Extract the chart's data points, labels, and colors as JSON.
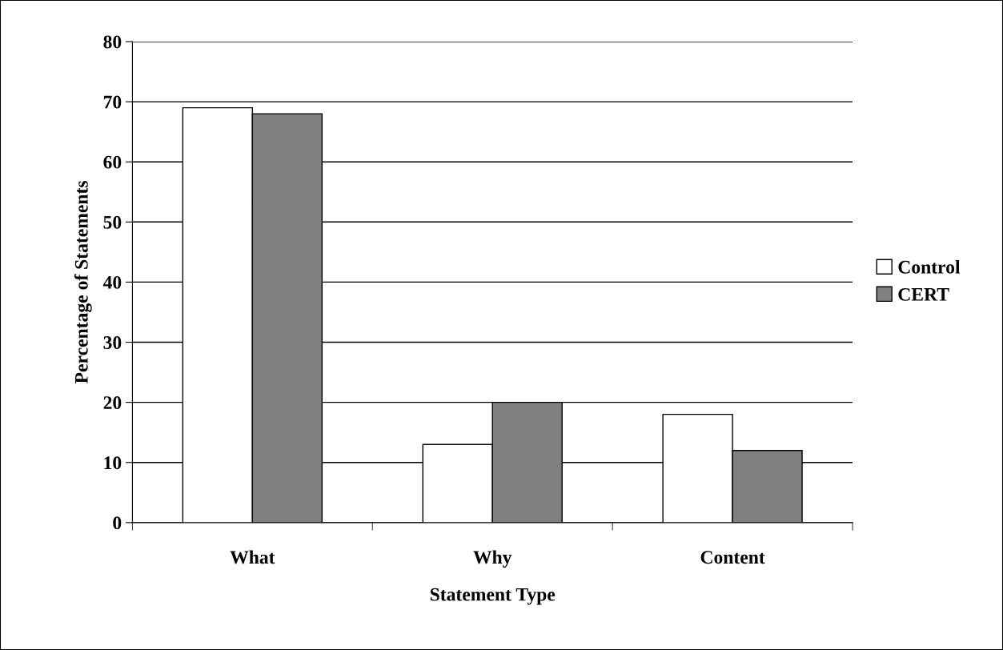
{
  "chart_data": {
    "type": "bar",
    "xlabel": "Statement Type",
    "ylabel": "Percentage of Statements",
    "categories": [
      "What",
      "Why",
      "Content"
    ],
    "series": [
      {
        "name": "Control",
        "color": "#ffffff",
        "values": [
          69,
          13,
          18
        ]
      },
      {
        "name": "CERT",
        "color": "#808080",
        "values": [
          68,
          20,
          12
        ]
      }
    ],
    "ylim": [
      0,
      80
    ],
    "yticks": [
      0,
      10,
      20,
      30,
      40,
      50,
      60,
      70,
      80
    ],
    "grid": "y",
    "legend": "right"
  }
}
